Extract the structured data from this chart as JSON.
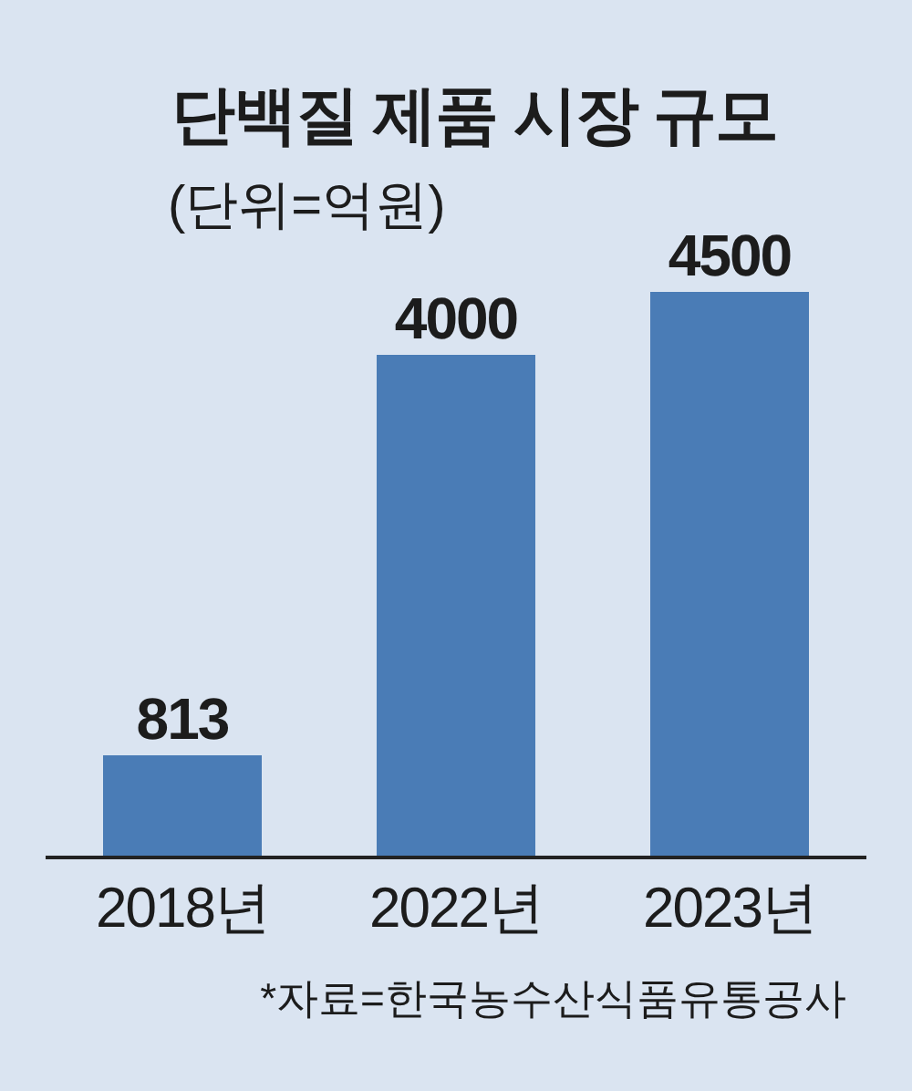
{
  "chart_data": {
    "type": "bar",
    "title": "단백질 제품 시장 규모",
    "subtitle": "(단위=억원)",
    "categories": [
      "2018년",
      "2022년",
      "2023년"
    ],
    "values": [
      813,
      4000,
      4500
    ],
    "color": "#4a7cb6",
    "data_labels": true,
    "annotations": [
      "*자료=한국농수산식품유통공사"
    ]
  }
}
